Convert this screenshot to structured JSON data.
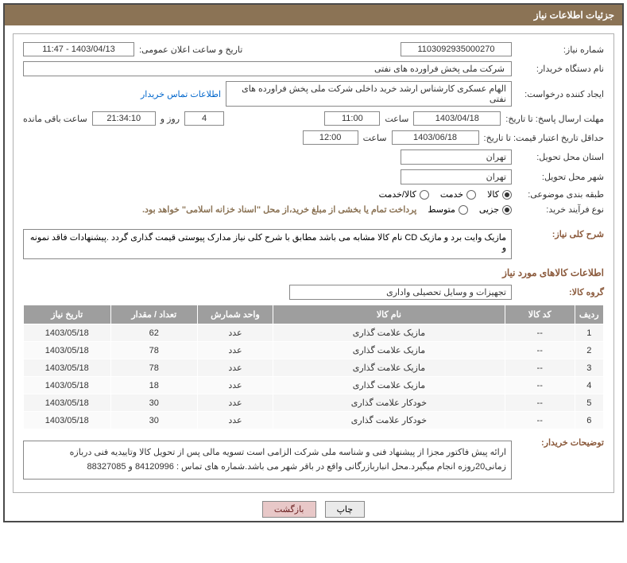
{
  "titleBar": "جزئیات اطلاعات نیاز",
  "labels": {
    "requestNumber": "شماره نیاز:",
    "announceDateTime": "تاریخ و ساعت اعلان عمومی:",
    "buyerOrgName": "نام دستگاه خریدار:",
    "requestCreator": "ایجاد کننده درخواست:",
    "responseDeadline": "مهلت ارسال پاسخ: تا تاریخ:",
    "hour": "ساعت",
    "daysAnd": "روز و",
    "remainingHours": "ساعت باقی مانده",
    "priceValidityMin": "حداقل تاریخ اعتبار قیمت: تا تاریخ:",
    "deliveryProvince": "استان محل تحویل:",
    "deliveryCity": "شهر محل تحویل:",
    "subjectClass": "طبقه بندی موضوعی:",
    "purchaseProcessType": "نوع فرآیند خرید:",
    "paymentNote": "پرداخت تمام یا بخشی از مبلغ خرید،از محل \"اسناد خزانه اسلامی\" خواهد بود.",
    "generalDesc": "شرح کلی نیاز:",
    "itemsSection": "اطلاعات کالاهای مورد نیاز",
    "itemGroup": "گروه کالا:",
    "buyerRemarks": "توضیحات خریدار:",
    "contactLink": "اطلاعات تماس خریدار"
  },
  "values": {
    "requestNumber": "1103092935000270",
    "announceDateTime": "1403/04/13 - 11:47",
    "buyerOrgName": "شرکت ملی پخش فراورده های نفتی",
    "requestCreator": "الهام عسکری کارشناس ارشد خرید داخلی شرکت ملی پخش فراورده های نفتی",
    "responseDeadlineDate": "1403/04/18",
    "responseDeadlineHour": "11:00",
    "remainingDays": "4",
    "remainingTime": "21:34:10",
    "priceValidityDate": "1403/06/18",
    "priceValidityHour": "12:00",
    "deliveryProvince": "تهران",
    "deliveryCity": "تهران",
    "generalDesc": "مازیک وایت برد و مازیک CD\nنام کالا مشابه می باشد مطابق با شرح کلی نیاز مدارک پیوستی قیمت گذاری گردد .پیشنهادات فاقد نمونه و",
    "itemGroup": "تجهیزات و وسایل تحصیلی واداری",
    "buyerRemarks": "ارائه پیش فاکتور مجزا از پیشنهاد فنی و شناسه ملی شرکت الزامی است تسویه مالی پس از تحویل کالا وتاییدیه فنی دربازه زمانی20روزه انجام میگیرد.محل انباربازرگانی واقع در باقر شهر می باشد.شماره های تماس : 84120996 و 88327085"
  },
  "radios": {
    "subject": [
      {
        "label": "کالا",
        "checked": true
      },
      {
        "label": "خدمت",
        "checked": false
      },
      {
        "label": "کالا/خدمت",
        "checked": false
      }
    ],
    "processType": [
      {
        "label": "جزیی",
        "checked": true
      },
      {
        "label": "متوسط",
        "checked": false
      }
    ]
  },
  "table": {
    "headers": [
      "ردیف",
      "کد کالا",
      "نام کالا",
      "واحد شمارش",
      "تعداد / مقدار",
      "تاریخ نیاز"
    ],
    "rows": [
      [
        "1",
        "--",
        "مازیک علامت گذاری",
        "عدد",
        "62",
        "1403/05/18"
      ],
      [
        "2",
        "--",
        "مازیک علامت گذاری",
        "عدد",
        "78",
        "1403/05/18"
      ],
      [
        "3",
        "--",
        "مازیک علامت گذاری",
        "عدد",
        "78",
        "1403/05/18"
      ],
      [
        "4",
        "--",
        "مازیک علامت گذاری",
        "عدد",
        "18",
        "1403/05/18"
      ],
      [
        "5",
        "--",
        "خودکار علامت گذاری",
        "عدد",
        "30",
        "1403/05/18"
      ],
      [
        "6",
        "--",
        "خودکار علامت گذاری",
        "عدد",
        "30",
        "1403/05/18"
      ]
    ]
  },
  "buttons": {
    "print": "چاپ",
    "back": "بازگشت"
  },
  "colors": {
    "titleBg": "#8b7355",
    "titleFg": "#ffffff",
    "headerFg": "#8b5a3c",
    "tableHeaderBg": "#9e9e9e",
    "linkColor": "#0066cc",
    "border": "#888888"
  }
}
